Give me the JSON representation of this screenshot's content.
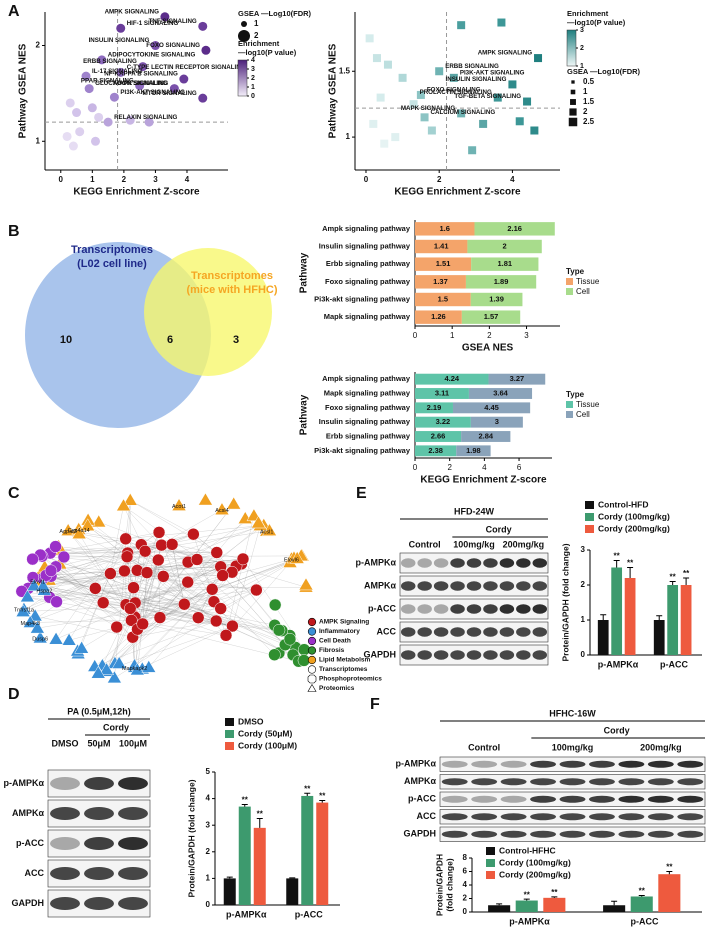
{
  "panel_letters": [
    "A",
    "B",
    "C",
    "D",
    "E",
    "F"
  ],
  "chart_data": [
    {
      "type": "scatter",
      "x_label": "KEGG Enrichment Z-score",
      "y_label": [
        "Pathway GSEA NES"
      ],
      "xlim": [
        -0.5,
        5.3
      ],
      "ylim": [
        0.7,
        2.35
      ],
      "xticks": [
        0,
        1,
        2,
        3,
        4
      ],
      "yticks": [
        1,
        2
      ],
      "ref_x": 1.8,
      "ref_y": 1.2,
      "marker": "circle",
      "x": [
        1.9,
        3.3,
        4.5,
        3.0,
        4.6,
        1.3,
        1.9,
        2.6,
        0.8,
        3.9,
        2.5,
        0.9,
        3.6,
        1.7,
        4.5,
        1.5,
        0.3,
        0.5,
        1.0,
        1.2,
        2.2,
        2.8,
        0.2,
        0.6,
        0.4,
        1.1
      ],
      "y": [
        2.18,
        2.3,
        2.2,
        2.0,
        1.95,
        1.85,
        1.72,
        1.78,
        1.68,
        1.65,
        1.58,
        1.55,
        1.55,
        1.46,
        1.45,
        1.2,
        1.4,
        1.3,
        1.35,
        1.25,
        1.22,
        1.2,
        1.05,
        1.1,
        0.95,
        1.0
      ],
      "labels": [
        "HIF-1 SIGNALING",
        "AMPK SIGNALING",
        "TNF SIGNALING",
        "INSULIN SIGNALING",
        "FOXO SIGNALING",
        "ADIPOCYTOKINE SIGNALING",
        "C-TYPE LECTIN RECEPTOR SIGNALING",
        "ERBB SIGNALING",
        "IL-17 SIGNALING",
        "NF-KAPPA B SIGNALING",
        "PPAR SIGNALING",
        "GLUCAGON SIGNALING",
        "MAPK SIGNALING",
        "PI3K-AKT SIGNALING",
        "MTOR SIGNALING",
        "RELAXIN SIGNALING",
        null,
        null,
        null,
        null,
        null,
        null,
        null,
        null,
        null,
        null
      ],
      "colors": [
        "#6a3d9a",
        "#5b2c8a",
        "#6a3d9a",
        "#7b52ab",
        "#5b2c8a",
        "#8e6bbf",
        "#8e6bbf",
        "#7b52ab",
        "#9f83cc",
        "#6a3d9a",
        "#8e6bbf",
        "#9f83cc",
        "#7b52ab",
        "#9f83cc",
        "#6a3d9a",
        "#b9a3db",
        "#dcd0ee",
        "#d2c3ea",
        "#c8b6e4",
        "#dcd0ee",
        "#c8b6e4",
        "#b9a3db",
        "#e6ddf3",
        "#dcd0ee",
        "#e6ddf3",
        "#d2c3ea"
      ],
      "size_legend": {
        "title": "GSEA —Log10(FDR)",
        "values": [
          1,
          2
        ]
      },
      "color_legend": {
        "title": [
          "Enrichment",
          "—log10(P value)"
        ],
        "ticks": [
          0,
          1,
          2,
          3,
          4
        ],
        "colors": [
          "#f3eefa",
          "#4b1f7a"
        ]
      }
    },
    {
      "type": "scatter",
      "x_label": "KEGG Enrichment Z-score",
      "y_label": [
        "Pathway GSEA NES"
      ],
      "xlim": [
        -0.3,
        5.3
      ],
      "ylim": [
        0.75,
        1.95
      ],
      "xticks": [
        0,
        2,
        4
      ],
      "yticks": [
        1,
        1.5
      ],
      "ref_x": 2.2,
      "ref_y": 1.22,
      "marker": "square",
      "x": [
        4.7,
        2.0,
        2.4,
        4.0,
        3.6,
        4.4,
        1.5,
        2.6,
        1.6,
        2.6,
        3.7,
        0.1,
        0.3,
        0.6,
        1.0,
        1.3,
        0.2,
        0.5,
        3.2,
        4.2,
        4.6,
        1.8,
        0.4,
        0.8,
        2.9
      ],
      "y": [
        1.6,
        1.5,
        1.45,
        1.4,
        1.3,
        1.27,
        1.32,
        1.18,
        1.15,
        1.85,
        1.87,
        1.75,
        1.6,
        1.55,
        1.45,
        1.25,
        1.1,
        0.95,
        1.1,
        1.12,
        1.05,
        1.05,
        1.3,
        1.0,
        0.9
      ],
      "labels": [
        "AMPK SIGNALING",
        "ERBB SIGNALING",
        "PI3K-AKT SIGNALING",
        "INSULIN SIGNALING",
        "PROLACTIN SIGNALING",
        "TGF-BETA SIGNALING",
        "FOXO SIGNALING",
        "MAPK SIGNALING",
        "CALCIUM SIGNALING",
        null,
        null,
        null,
        null,
        null,
        null,
        null,
        null,
        null,
        null,
        null,
        null,
        null,
        null,
        null,
        null
      ],
      "colors": [
        "#1f7f7f",
        "#6fb3b3",
        "#5aa5a5",
        "#2e8b8b",
        "#3d9797",
        "#2e8b8b",
        "#8cc4c4",
        "#6fb3b3",
        "#8cc4c4",
        "#4a9e9e",
        "#3d9797",
        "#d5ecec",
        "#c7e4e4",
        "#bddfdf",
        "#b0d8d8",
        "#c7e4e4",
        "#dff0f0",
        "#e6f3f3",
        "#5aa5a5",
        "#3d9797",
        "#2e8b8b",
        "#a3d1d1",
        "#d5ecec",
        "#dff0f0",
        "#6fb3b3"
      ],
      "size_legend": {
        "title": "GSEA —Log10(FDR)",
        "values": [
          0.5,
          1.0,
          1.5,
          2.0,
          2.5
        ]
      },
      "color_legend": {
        "title": [
          "Enrichment",
          "—log10(P value)"
        ],
        "ticks": [
          1,
          2,
          3
        ],
        "colors": [
          "#eef7f7",
          "#1f7f7f"
        ]
      }
    },
    {
      "type": "stacked-hbar",
      "x_label": "GSEA NES",
      "y_label": "Pathway",
      "legend_title": "Type",
      "categories": [
        "Ampk signaling pathway",
        "Insulin signaling pathway",
        "Erbb signaling pathway",
        "Foxo signaling pathway",
        "Pi3k-akt signaling pathway",
        "Mapk signaling pathway"
      ],
      "xlim": [
        0,
        3.9
      ],
      "xticks": [
        0,
        1,
        2,
        3
      ],
      "series": [
        {
          "name": "Tissue",
          "color": "#f4a46a",
          "values": [
            1.6,
            1.41,
            1.51,
            1.37,
            1.5,
            1.26
          ]
        },
        {
          "name": "Cell",
          "color": "#a8dc8c",
          "values": [
            2.16,
            2,
            1.81,
            1.89,
            1.39,
            1.57
          ]
        }
      ]
    },
    {
      "type": "stacked-hbar",
      "x_label": "KEGG Enrichment Z-score",
      "y_label": "Pathway",
      "legend_title": "Type",
      "categories": [
        "Ampk signaling pathway",
        "Mapk signaling pathway",
        "Foxo signaling pathway",
        "Insulin signaling pathway",
        "Erbb signaling pathway",
        "Pi3k-akt signaling pathway"
      ],
      "xlim": [
        0,
        7.9
      ],
      "xticks": [
        0,
        2,
        4,
        6
      ],
      "series": [
        {
          "name": "Tissue",
          "color": "#5ec4a8",
          "values": [
            4.24,
            3.11,
            2.19,
            3.22,
            2.66,
            2.38
          ]
        },
        {
          "name": "Cell",
          "color": "#8aa3ba",
          "values": [
            3.27,
            3.64,
            4.45,
            3,
            2.84,
            1.98
          ]
        }
      ]
    },
    {
      "type": "grouped-bar",
      "y_label": [
        "Protein/GAPDH (fold change)"
      ],
      "categories": [
        "p-AMPKα",
        "p-ACC"
      ],
      "ylim": [
        0,
        5
      ],
      "yticks": [
        0,
        1,
        2,
        3,
        4,
        5
      ],
      "series": [
        {
          "name": "DMSO",
          "color": "#111111",
          "values": [
            1,
            1
          ],
          "errors": [
            0.05,
            0.02
          ],
          "significance": [
            null,
            null
          ]
        },
        {
          "name": "Cordy (50μM)",
          "color": "#3d9a6e",
          "values": [
            3.7,
            4.1
          ],
          "errors": [
            0.08,
            0.1
          ],
          "significance": [
            "**",
            "**"
          ]
        },
        {
          "name": "Cordy (100μM)",
          "color": "#ee5a3e",
          "values": [
            2.9,
            3.85
          ],
          "errors": [
            0.35,
            0.08
          ],
          "significance": [
            "**",
            "**"
          ]
        }
      ]
    },
    {
      "type": "grouped-bar",
      "y_label": [
        "Protein/GAPDH (fold change)"
      ],
      "categories": [
        "p-AMPKα",
        "p-ACC"
      ],
      "ylim": [
        0,
        3
      ],
      "yticks": [
        0,
        1,
        2,
        3
      ],
      "series": [
        {
          "name": "Control-HFD",
          "color": "#111111",
          "values": [
            1,
            1
          ],
          "errors": [
            0.15,
            0.12
          ],
          "significance": [
            null,
            null
          ]
        },
        {
          "name": "Cordy (100mg/kg)",
          "color": "#3d9a6e",
          "values": [
            2.5,
            2.0
          ],
          "errors": [
            0.2,
            0.1
          ],
          "significance": [
            "**",
            "**"
          ]
        },
        {
          "name": "Cordy (200mg/kg)",
          "color": "#ee5a3e",
          "values": [
            2.2,
            2.0
          ],
          "errors": [
            0.3,
            0.2
          ],
          "significance": [
            "**",
            "**"
          ]
        }
      ]
    },
    {
      "type": "grouped-bar",
      "y_label": [
        "Protein/GAPDH",
        "(fold change)"
      ],
      "categories": [
        "p-AMPKα",
        "p-ACC"
      ],
      "ylim": [
        0,
        8
      ],
      "yticks": [
        0,
        2,
        4,
        6,
        8
      ],
      "series": [
        {
          "name": "Control-HFHC",
          "color": "#111111",
          "values": [
            1,
            1
          ],
          "errors": [
            0.2,
            0.6
          ],
          "significance": [
            null,
            null
          ]
        },
        {
          "name": "Cordy (100mg/kg)",
          "color": "#3d9a6e",
          "values": [
            1.7,
            2.3
          ],
          "errors": [
            0.2,
            0.15
          ],
          "significance": [
            "**",
            "**"
          ]
        },
        {
          "name": "Cordy (200mg/kg)",
          "color": "#ee5a3e",
          "values": [
            2.1,
            5.6
          ],
          "errors": [
            0.15,
            0.4
          ],
          "significance": [
            "**",
            "**"
          ]
        }
      ]
    }
  ],
  "venn": {
    "left_label": [
      "Transcriptomes",
      "(L02 cell line)"
    ],
    "right_label": [
      "Transcriptomes",
      "(mice with HFHC)"
    ],
    "left_only": 10,
    "both": 6,
    "right_only": 3
  },
  "network": {
    "legend": [
      {
        "label": "AMPK Signaling",
        "color": "#c0181c",
        "shape": "circle"
      },
      {
        "label": "Inflammatory",
        "color": "#3a8fd6",
        "shape": "circle"
      },
      {
        "label": "Cell Death",
        "color": "#9b30c8",
        "shape": "circle"
      },
      {
        "label": "Fibrosis",
        "color": "#2f8f2f",
        "shape": "circle"
      },
      {
        "label": "Lipid Metabolsm",
        "color": "#f0a020",
        "shape": "circle"
      },
      {
        "label": "Transcriptomes",
        "color": "#ffffff",
        "shape": "circle"
      },
      {
        "label": "Phosphoproteomics",
        "color": "#ffffff",
        "shape": "octagon"
      },
      {
        "label": "Proteomics",
        "color": "#ffffff",
        "shape": "triangle"
      }
    ],
    "node_labels": [
      "Tnfrsf1a",
      "Hspa2",
      "Map4k3",
      "Mapkapk2",
      "Dusp6",
      "Acsl1",
      "Acsl4",
      "Elovl6",
      "Elovl1",
      "Agpat3",
      "Cyp4a14",
      "Acot1"
    ]
  },
  "blot_D": {
    "condition": "PA (0.5μM,12h)",
    "group": "Cordy",
    "lanes": [
      "DMSO",
      "50μM",
      "100μM"
    ],
    "proteins": [
      "p-AMPKα",
      "AMPKα",
      "p-ACC",
      "ACC",
      "GAPDH"
    ]
  },
  "blot_E": {
    "condition": "HFD-24W",
    "group": "Cordy",
    "lanes": [
      "Control",
      "100mg/kg",
      "200mg/kg"
    ],
    "proteins": [
      "p-AMPKα",
      "AMPKα",
      "p-ACC",
      "ACC",
      "GAPDH"
    ]
  },
  "blot_F": {
    "condition": "HFHC-16W",
    "group": "Cordy",
    "lanes": [
      "Control",
      "100mg/kg",
      "200mg/kg"
    ],
    "proteins": [
      "p-AMPKα",
      "AMPKα",
      "p-ACC",
      "ACC",
      "GAPDH"
    ]
  }
}
